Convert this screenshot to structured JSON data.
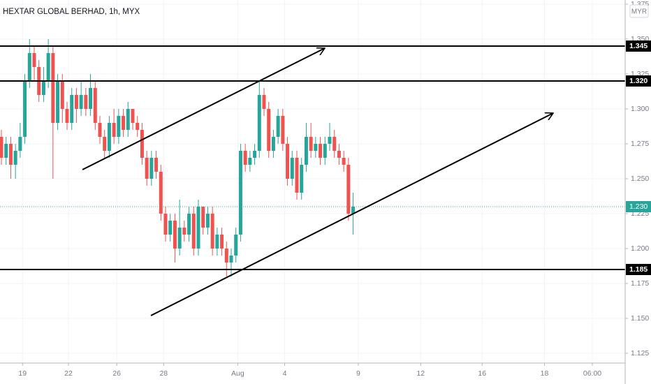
{
  "chart_data": {
    "type": "candlestick",
    "title": "HEXTAR GLOBAL BERHAD, 1h, MYX",
    "currency": "MYR",
    "up_color": "#26a69a",
    "down_color": "#ef5350",
    "open": [
      1.28,
      1.265,
      1.275,
      1.26,
      1.27,
      1.28,
      1.32,
      1.34,
      1.33,
      1.31,
      1.32,
      1.34,
      1.29,
      1.32,
      1.3,
      1.29,
      1.31,
      1.3,
      1.31,
      1.3,
      1.315,
      1.29,
      1.28,
      1.27,
      1.29,
      1.28,
      1.295,
      1.285,
      1.3,
      1.29,
      1.285,
      1.265,
      1.25,
      1.265,
      1.255,
      1.225,
      1.21,
      1.22,
      1.2,
      1.215,
      1.21,
      1.225,
      1.2,
      1.23,
      1.215,
      1.225,
      1.2,
      1.21,
      1.2,
      1.19,
      1.195,
      1.21,
      1.27,
      1.26,
      1.265,
      1.27,
      1.31,
      1.3,
      1.27,
      1.28,
      1.295,
      1.275,
      1.25,
      1.265,
      1.24,
      1.26,
      1.28,
      1.27,
      1.275,
      1.265,
      1.275,
      1.28,
      1.27,
      1.265,
      1.26,
      1.225
    ],
    "high": [
      1.285,
      1.28,
      1.28,
      1.275,
      1.29,
      1.325,
      1.35,
      1.345,
      1.335,
      1.33,
      1.35,
      1.345,
      1.325,
      1.325,
      1.305,
      1.315,
      1.315,
      1.32,
      1.315,
      1.325,
      1.32,
      1.295,
      1.285,
      1.295,
      1.3,
      1.3,
      1.3,
      1.305,
      1.3,
      1.295,
      1.29,
      1.27,
      1.27,
      1.27,
      1.26,
      1.23,
      1.225,
      1.225,
      1.235,
      1.22,
      1.23,
      1.23,
      1.235,
      1.23,
      1.23,
      1.23,
      1.215,
      1.215,
      1.205,
      1.2,
      1.215,
      1.275,
      1.275,
      1.27,
      1.275,
      1.32,
      1.315,
      1.305,
      1.285,
      1.3,
      1.3,
      1.28,
      1.27,
      1.27,
      1.265,
      1.29,
      1.29,
      1.28,
      1.28,
      1.28,
      1.29,
      1.285,
      1.275,
      1.27,
      1.265,
      1.24
    ],
    "low": [
      1.26,
      1.26,
      1.25,
      1.25,
      1.265,
      1.275,
      1.315,
      1.32,
      1.305,
      1.305,
      1.315,
      1.25,
      1.285,
      1.29,
      1.285,
      1.285,
      1.29,
      1.295,
      1.295,
      1.295,
      1.285,
      1.275,
      1.265,
      1.265,
      1.275,
      1.275,
      1.28,
      1.28,
      1.285,
      1.28,
      1.26,
      1.245,
      1.245,
      1.25,
      1.22,
      1.205,
      1.205,
      1.19,
      1.195,
      1.205,
      1.205,
      1.195,
      1.195,
      1.21,
      1.21,
      1.195,
      1.195,
      1.195,
      1.18,
      1.18,
      1.19,
      1.205,
      1.255,
      1.255,
      1.26,
      1.265,
      1.295,
      1.265,
      1.265,
      1.275,
      1.27,
      1.245,
      1.245,
      1.235,
      1.235,
      1.255,
      1.265,
      1.265,
      1.26,
      1.26,
      1.27,
      1.265,
      1.26,
      1.255,
      1.22,
      1.21
    ],
    "close": [
      1.265,
      1.275,
      1.26,
      1.27,
      1.28,
      1.32,
      1.34,
      1.33,
      1.31,
      1.32,
      1.34,
      1.29,
      1.32,
      1.3,
      1.29,
      1.31,
      1.3,
      1.31,
      1.3,
      1.315,
      1.29,
      1.28,
      1.27,
      1.29,
      1.28,
      1.295,
      1.285,
      1.3,
      1.29,
      1.285,
      1.265,
      1.25,
      1.265,
      1.255,
      1.225,
      1.21,
      1.22,
      1.2,
      1.215,
      1.21,
      1.225,
      1.2,
      1.23,
      1.215,
      1.225,
      1.2,
      1.21,
      1.2,
      1.19,
      1.195,
      1.21,
      1.27,
      1.26,
      1.265,
      1.27,
      1.31,
      1.3,
      1.27,
      1.28,
      1.295,
      1.275,
      1.25,
      1.265,
      1.24,
      1.26,
      1.28,
      1.27,
      1.275,
      1.265,
      1.275,
      1.28,
      1.27,
      1.265,
      1.26,
      1.225,
      1.23
    ],
    "xlim": [
      0,
      133
    ],
    "xticks": [
      {
        "value": 4.5,
        "label": "19"
      },
      {
        "value": 14.3,
        "label": "22"
      },
      {
        "value": 24.6,
        "label": "26"
      },
      {
        "value": 34.6,
        "label": "28"
      },
      {
        "value": 50.4,
        "label": "Aug"
      },
      {
        "value": 60.4,
        "label": "4"
      },
      {
        "value": 76.1,
        "label": "9"
      },
      {
        "value": 89.4,
        "label": "12"
      },
      {
        "value": 102.5,
        "label": "16"
      },
      {
        "value": 115.8,
        "label": "18"
      },
      {
        "value": 126,
        "label": "06:00"
      }
    ],
    "ylim": [
      1.118,
      1.378
    ],
    "yticks": [
      1.125,
      {
        "value": 1.15,
        "label": "1.150"
      },
      1.175,
      {
        "value": 1.2,
        "label": "1.200"
      },
      1.225,
      {
        "value": 1.25,
        "label": "1.250"
      },
      1.275,
      {
        "value": 1.3,
        "label": "1.300"
      },
      1.325,
      {
        "value": 1.35,
        "label": "1.350"
      },
      1.375
    ],
    "levels": [
      {
        "value": 1.345,
        "label": "1.345"
      },
      {
        "value": 1.32,
        "label": "1.320"
      },
      {
        "value": 1.185,
        "label": "1.185"
      }
    ],
    "last_price": {
      "value": 1.23,
      "label": "1.230"
    },
    "grid": true
  }
}
